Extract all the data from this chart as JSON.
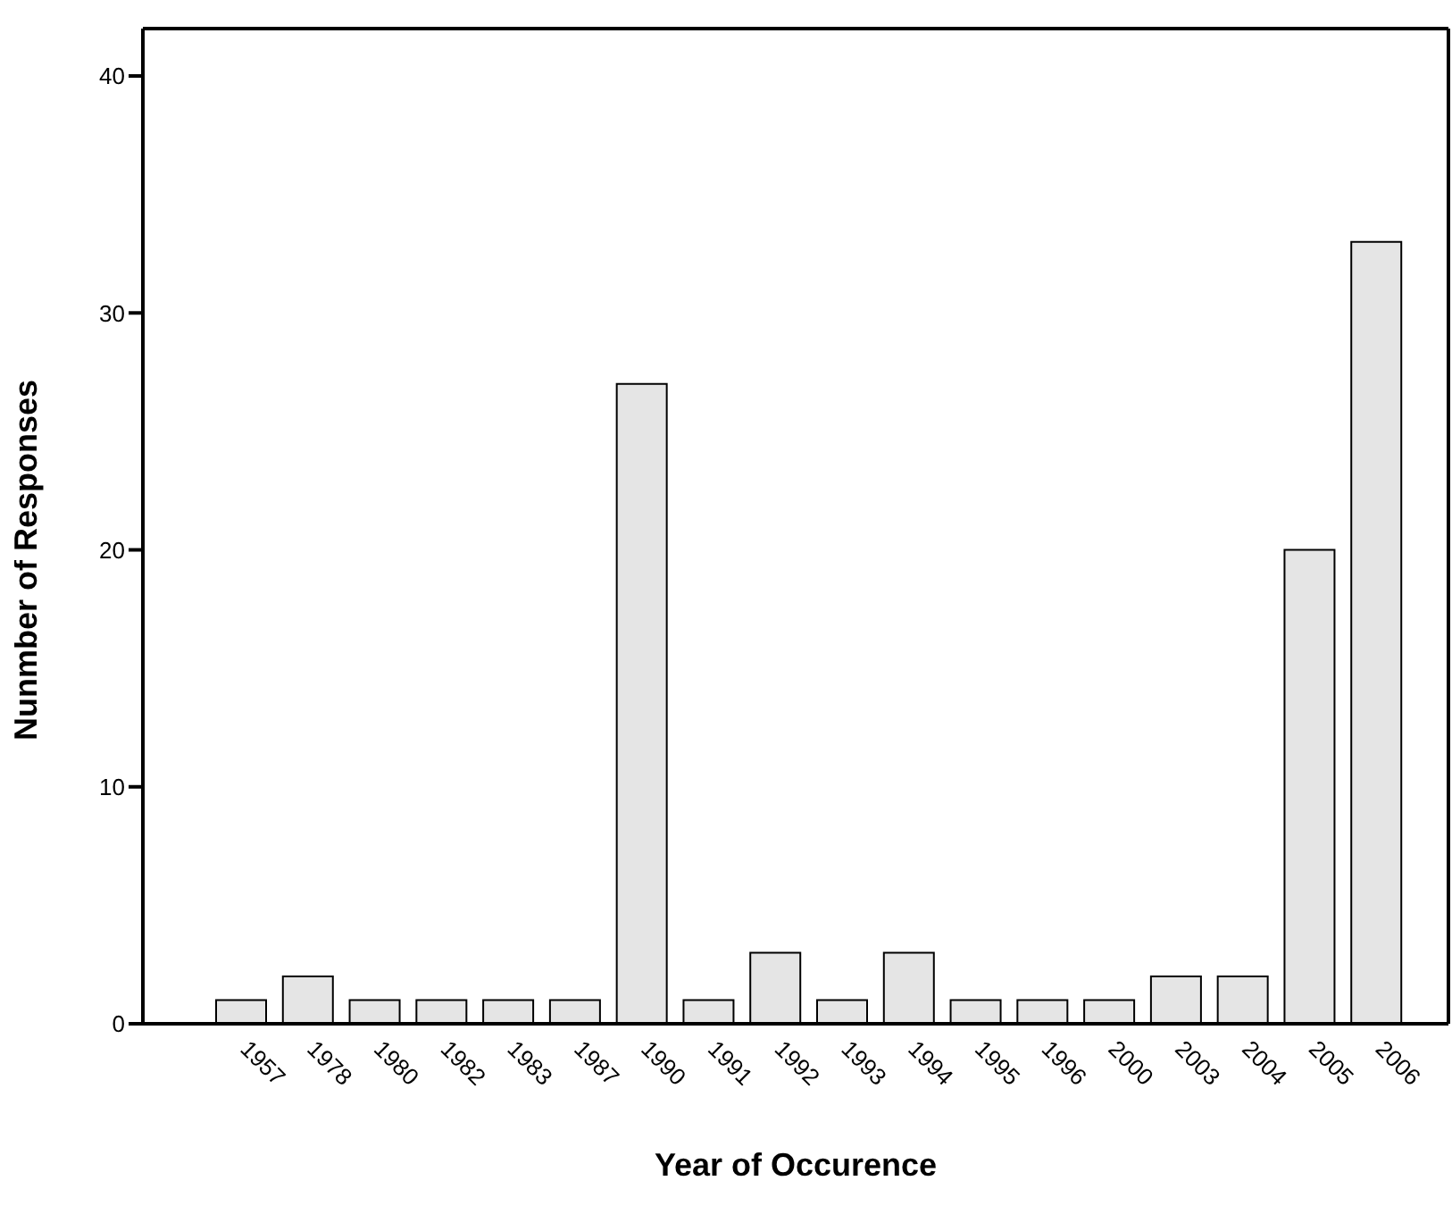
{
  "chart_data": {
    "type": "bar",
    "xlabel": "Year of Occurence",
    "ylabel": "Nunmber of Responses",
    "categories": [
      "1957",
      "1978",
      "1980",
      "1982",
      "1983",
      "1987",
      "1990",
      "1991",
      "1992",
      "1993",
      "1994",
      "1995",
      "1996",
      "2000",
      "2003",
      "2004",
      "2005",
      "2006"
    ],
    "values": [
      1,
      2,
      1,
      1,
      1,
      1,
      27,
      1,
      3,
      1,
      3,
      1,
      1,
      1,
      2,
      2,
      20,
      33
    ],
    "color": "#e5e5e5",
    "ylim": [
      0,
      42
    ],
    "yticks": [
      0,
      10,
      20,
      30,
      40
    ],
    "grid": false,
    "legend": false
  }
}
